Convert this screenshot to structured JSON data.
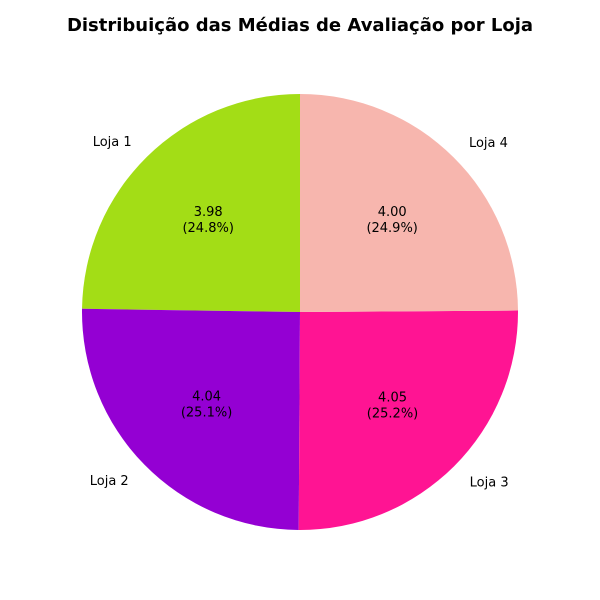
{
  "chart_data": {
    "type": "pie",
    "title": "Distribuição das Médias de Avaliação por Loja",
    "categories": [
      "Loja 1",
      "Loja 2",
      "Loja 3",
      "Loja 4"
    ],
    "values": [
      3.98,
      4.04,
      4.05,
      4.0
    ],
    "value_labels": [
      "3.98",
      "4.04",
      "4.05",
      "4.00"
    ],
    "percent_labels": [
      "(24.8%)",
      "(25.1%)",
      "(25.2%)",
      "(24.9%)"
    ],
    "colors": [
      "#a3dd16",
      "#9400d3",
      "#ff1493",
      "#f7b6ae"
    ],
    "start_angle": 90,
    "direction": "counterclockwise",
    "legend": "none"
  }
}
